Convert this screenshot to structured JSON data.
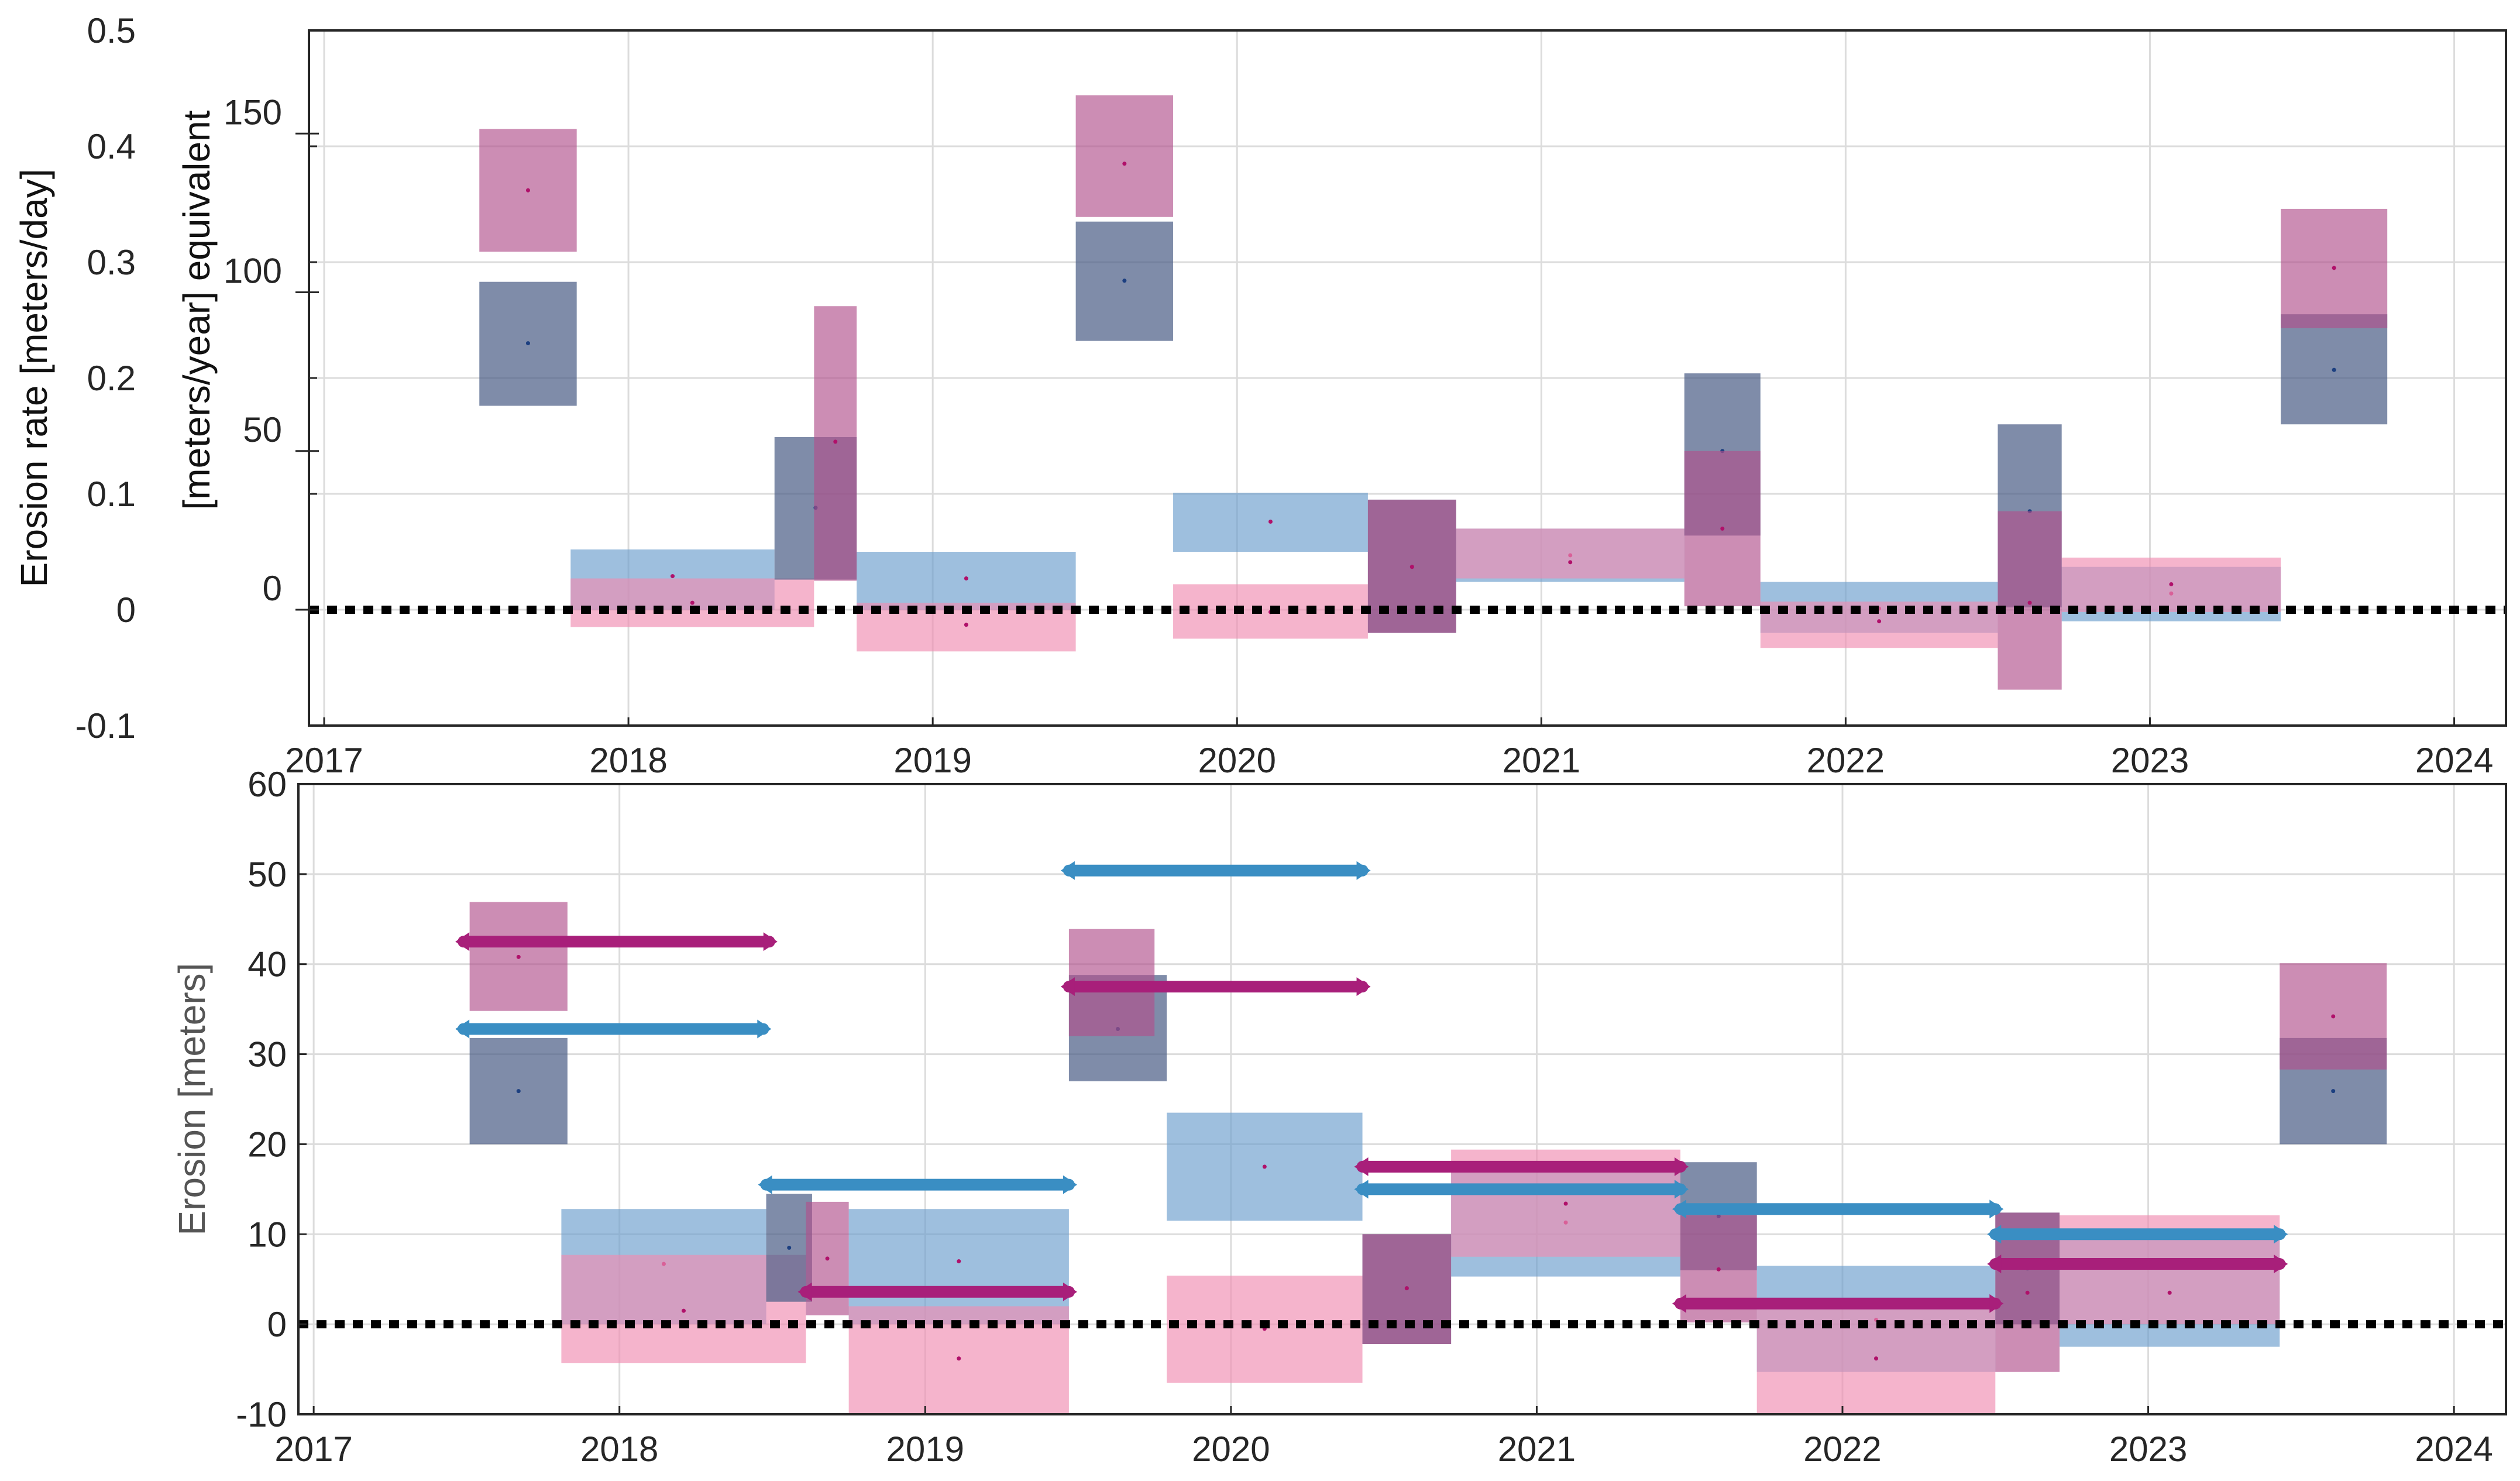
{
  "colors": {
    "navy": "#4d5f88",
    "magenta": "#b0508c",
    "lightblue": "#6a9ccc",
    "pink": "#f08cb0",
    "arrowBlue": "#3a8ec3",
    "arrowMagenta": "#a81f7a",
    "zeroLine": "#000000"
  },
  "chart_data": [
    {
      "type": "bar",
      "title": "",
      "xlabel": "",
      "ylabel": "Erosion rate [meters/day]",
      "ylabel2": "[meters/year] equivalent",
      "xlim": [
        2016.95,
        2024.17
      ],
      "ylim": [
        -0.1,
        0.5
      ],
      "x_ticks": [
        2017,
        2018,
        2019,
        2020,
        2021,
        2022,
        2023,
        2024
      ],
      "x_tick_labels": [
        "2017",
        "2018",
        "2019",
        "2020",
        "2021",
        "2022",
        "2023",
        "2024"
      ],
      "y_ticks": [
        -0.1,
        0,
        0.1,
        0.2,
        0.3,
        0.4,
        0.5
      ],
      "y_tick_labels": [
        "-0.1",
        "0",
        "0.1",
        "0.2",
        "0.3",
        "0.4",
        "0.5"
      ],
      "y2_ticks": [
        0,
        50,
        100,
        150
      ],
      "y2_tick_labels": [
        "0",
        "50",
        "100",
        "150"
      ],
      "y2_per_y": 365,
      "zero_line": 0,
      "grid": true,
      "series": [
        {
          "name": "navy",
          "boxes": [
            {
              "x0": 2017.51,
              "x1": 2017.83,
              "y0": 0.176,
              "y1": 0.283,
              "mid": 0.23
            },
            {
              "x0": 2018.48,
              "x1": 2018.75,
              "y0": 0.026,
              "y1": 0.149,
              "mid": 0.088
            },
            {
              "x0": 2019.47,
              "x1": 2019.79,
              "y0": 0.232,
              "y1": 0.335,
              "mid": 0.284
            },
            {
              "x0": 2020.43,
              "x1": 2020.72,
              "y0": -0.02,
              "y1": 0.095,
              "mid": 0.037
            },
            {
              "x0": 2021.47,
              "x1": 2021.72,
              "y0": 0.064,
              "y1": 0.204,
              "mid": 0.137
            },
            {
              "x0": 2022.5,
              "x1": 2022.71,
              "y0": 0.002,
              "y1": 0.16,
              "mid": 0.085
            },
            {
              "x0": 2023.43,
              "x1": 2023.78,
              "y0": 0.16,
              "y1": 0.255,
              "mid": 0.207
            }
          ]
        },
        {
          "name": "magenta",
          "boxes": [
            {
              "x0": 2017.51,
              "x1": 2017.83,
              "y0": 0.309,
              "y1": 0.415,
              "mid": 0.362
            },
            {
              "x0": 2018.61,
              "x1": 2018.75,
              "y0": 0.025,
              "y1": 0.262,
              "mid": 0.145
            },
            {
              "x0": 2019.47,
              "x1": 2019.79,
              "y0": 0.339,
              "y1": 0.444,
              "mid": 0.385
            },
            {
              "x0": 2020.43,
              "x1": 2020.72,
              "y0": -0.02,
              "y1": 0.095,
              "mid": 0.037
            },
            {
              "x0": 2021.47,
              "x1": 2021.72,
              "y0": 0.003,
              "y1": 0.137,
              "mid": 0.07
            },
            {
              "x0": 2022.5,
              "x1": 2022.71,
              "y0": -0.069,
              "y1": 0.085,
              "mid": 0.006
            },
            {
              "x0": 2023.43,
              "x1": 2023.78,
              "y0": 0.243,
              "y1": 0.346,
              "mid": 0.295
            }
          ]
        },
        {
          "name": "lightblue",
          "boxes": [
            {
              "x0": 2017.81,
              "x1": 2018.48,
              "y0": 0.0,
              "y1": 0.052,
              "mid": 0.029
            },
            {
              "x0": 2018.75,
              "x1": 2019.47,
              "y0": 0.0,
              "y1": 0.05,
              "mid": 0.027
            },
            {
              "x0": 2019.79,
              "x1": 2020.43,
              "y0": 0.05,
              "y1": 0.101,
              "mid": 0.076
            },
            {
              "x0": 2020.72,
              "x1": 2021.47,
              "y0": 0.024,
              "y1": 0.07,
              "mid": 0.047
            },
            {
              "x0": 2021.72,
              "x1": 2022.5,
              "y0": -0.02,
              "y1": 0.024,
              "mid": 0.001
            },
            {
              "x0": 2022.71,
              "x1": 2023.43,
              "y0": -0.01,
              "y1": 0.037,
              "mid": 0.014
            }
          ]
        },
        {
          "name": "pink",
          "boxes": [
            {
              "x0": 2017.81,
              "x1": 2018.61,
              "y0": -0.015,
              "y1": 0.027,
              "mid": 0.006
            },
            {
              "x0": 2018.75,
              "x1": 2019.47,
              "y0": -0.036,
              "y1": 0.006,
              "mid": -0.013
            },
            {
              "x0": 2019.79,
              "x1": 2020.43,
              "y0": -0.025,
              "y1": 0.022,
              "mid": -0.002
            },
            {
              "x0": 2020.72,
              "x1": 2021.47,
              "y0": 0.027,
              "y1": 0.07,
              "mid": 0.041
            },
            {
              "x0": 2021.72,
              "x1": 2022.5,
              "y0": -0.033,
              "y1": 0.007,
              "mid": -0.01
            },
            {
              "x0": 2022.71,
              "x1": 2023.43,
              "y0": -0.002,
              "y1": 0.045,
              "mid": 0.022
            }
          ]
        }
      ]
    },
    {
      "type": "bar",
      "title": "",
      "xlabel": "",
      "ylabel": "Erosion [meters]",
      "xlim": [
        2016.95,
        2024.17
      ],
      "ylim": [
        -10,
        60
      ],
      "x_ticks": [
        2017,
        2018,
        2019,
        2020,
        2021,
        2022,
        2023,
        2024
      ],
      "x_tick_labels": [
        "2017",
        "2018",
        "2019",
        "2020",
        "2021",
        "2022",
        "2023",
        "2024"
      ],
      "y_ticks": [
        -10,
        0,
        10,
        20,
        30,
        40,
        50,
        60
      ],
      "y_tick_labels": [
        "-10",
        "0",
        "10",
        "20",
        "30",
        "40",
        "50",
        "60"
      ],
      "zero_line": 0,
      "grid": true,
      "series": [
        {
          "name": "navy",
          "boxes": [
            {
              "x0": 2017.51,
              "x1": 2017.83,
              "y0": 20.0,
              "y1": 31.8,
              "mid": 25.9
            },
            {
              "x0": 2018.48,
              "x1": 2018.63,
              "y0": 2.5,
              "y1": 14.5,
              "mid": 8.5
            },
            {
              "x0": 2019.47,
              "x1": 2019.79,
              "y0": 27.0,
              "y1": 38.8,
              "mid": 32.8
            },
            {
              "x0": 2020.43,
              "x1": 2020.72,
              "y0": -2.2,
              "y1": 10.0,
              "mid": 4.0
            },
            {
              "x0": 2021.47,
              "x1": 2021.72,
              "y0": 6.0,
              "y1": 18.0,
              "mid": 12.0
            },
            {
              "x0": 2022.5,
              "x1": 2022.71,
              "y0": 0.0,
              "y1": 12.4,
              "mid": 6.2
            },
            {
              "x0": 2023.43,
              "x1": 2023.78,
              "y0": 20.0,
              "y1": 31.8,
              "mid": 25.9
            }
          ]
        },
        {
          "name": "magenta",
          "boxes": [
            {
              "x0": 2017.51,
              "x1": 2017.83,
              "y0": 34.8,
              "y1": 46.9,
              "mid": 40.8
            },
            {
              "x0": 2018.61,
              "x1": 2018.75,
              "y0": 1.0,
              "y1": 13.6,
              "mid": 7.3
            },
            {
              "x0": 2019.47,
              "x1": 2019.75,
              "y0": 32.0,
              "y1": 43.9,
              "mid": 37.9
            },
            {
              "x0": 2020.43,
              "x1": 2020.72,
              "y0": -2.2,
              "y1": 10.0,
              "mid": 4.0
            },
            {
              "x0": 2021.47,
              "x1": 2021.72,
              "y0": 0.2,
              "y1": 12.1,
              "mid": 6.1
            },
            {
              "x0": 2022.5,
              "x1": 2022.71,
              "y0": -5.3,
              "y1": 12.4,
              "mid": 3.5
            },
            {
              "x0": 2023.43,
              "x1": 2023.78,
              "y0": 28.3,
              "y1": 40.1,
              "mid": 34.2
            }
          ]
        },
        {
          "name": "lightblue",
          "boxes": [
            {
              "x0": 2017.81,
              "x1": 2018.48,
              "y0": 0.0,
              "y1": 12.8,
              "mid": 6.7
            },
            {
              "x0": 2018.75,
              "x1": 2019.47,
              "y0": 0.0,
              "y1": 12.8,
              "mid": 7.0
            },
            {
              "x0": 2019.79,
              "x1": 2020.43,
              "y0": 11.5,
              "y1": 23.5,
              "mid": 17.5
            },
            {
              "x0": 2020.72,
              "x1": 2021.47,
              "y0": 5.3,
              "y1": 17.7,
              "mid": 11.3
            },
            {
              "x0": 2021.72,
              "x1": 2022.5,
              "y0": -5.3,
              "y1": 6.5,
              "mid": 0.5
            },
            {
              "x0": 2022.71,
              "x1": 2023.43,
              "y0": -2.5,
              "y1": 9.5,
              "mid": 3.5
            }
          ]
        },
        {
          "name": "pink",
          "boxes": [
            {
              "x0": 2017.81,
              "x1": 2018.61,
              "y0": -4.3,
              "y1": 7.7,
              "mid": 1.5
            },
            {
              "x0": 2018.75,
              "x1": 2019.47,
              "y0": -10.0,
              "y1": 2.0,
              "mid": -3.8
            },
            {
              "x0": 2019.79,
              "x1": 2020.43,
              "y0": -6.5,
              "y1": 5.4,
              "mid": -0.5
            },
            {
              "x0": 2020.72,
              "x1": 2021.47,
              "y0": 7.5,
              "y1": 19.4,
              "mid": 13.4
            },
            {
              "x0": 2021.72,
              "x1": 2022.5,
              "y0": -10.0,
              "y1": 2.0,
              "mid": -3.8
            },
            {
              "x0": 2022.71,
              "x1": 2023.43,
              "y0": 0.0,
              "y1": 12.1,
              "mid": 3.5
            }
          ]
        }
      ],
      "intervals": [
        {
          "series": "arrowMagenta",
          "x0": 2017.49,
          "x1": 2018.49,
          "y": 42.5
        },
        {
          "series": "arrowBlue",
          "x0": 2017.49,
          "x1": 2018.47,
          "y": 32.8
        },
        {
          "series": "arrowBlue",
          "x0": 2018.48,
          "x1": 2019.47,
          "y": 15.5
        },
        {
          "series": "arrowMagenta",
          "x0": 2018.61,
          "x1": 2019.47,
          "y": 3.6
        },
        {
          "series": "arrowBlue",
          "x0": 2019.47,
          "x1": 2020.43,
          "y": 50.4
        },
        {
          "series": "arrowMagenta",
          "x0": 2019.47,
          "x1": 2020.43,
          "y": 37.5
        },
        {
          "series": "arrowMagenta",
          "x0": 2020.43,
          "x1": 2021.47,
          "y": 17.5
        },
        {
          "series": "arrowBlue",
          "x0": 2020.43,
          "x1": 2021.47,
          "y": 15.0
        },
        {
          "series": "arrowBlue",
          "x0": 2021.47,
          "x1": 2022.5,
          "y": 12.8
        },
        {
          "series": "arrowMagenta",
          "x0": 2021.47,
          "x1": 2022.5,
          "y": 2.3
        },
        {
          "series": "arrowBlue",
          "x0": 2022.5,
          "x1": 2023.43,
          "y": 10.0
        },
        {
          "series": "arrowMagenta",
          "x0": 2022.5,
          "x1": 2023.43,
          "y": 6.7
        }
      ]
    }
  ]
}
